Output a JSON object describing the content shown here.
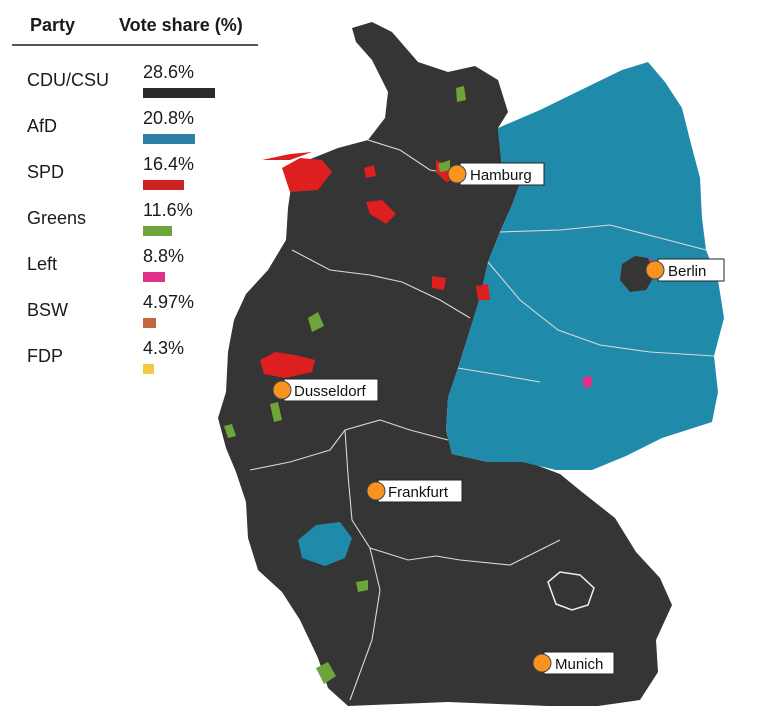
{
  "legend": {
    "header_party": "Party",
    "header_share": "Vote share (%)",
    "parties": [
      {
        "name": "CDU/CSU",
        "share_label": "28.6%",
        "share": 28.6,
        "color": "#2b2b2b"
      },
      {
        "name": "AfD",
        "share_label": "20.8%",
        "share": 20.8,
        "color": "#2e7fa6"
      },
      {
        "name": "SPD",
        "share_label": "16.4%",
        "share": 16.4,
        "color": "#cc2222"
      },
      {
        "name": "Greens",
        "share_label": "11.6%",
        "share": 11.6,
        "color": "#6ea53a"
      },
      {
        "name": "Left",
        "share_label": "8.8%",
        "share": 8.8,
        "color": "#e0308a"
      },
      {
        "name": "BSW",
        "share_label": "4.97%",
        "share": 4.97,
        "color": "#c4673d"
      },
      {
        "name": "FDP",
        "share_label": "4.3%",
        "share": 4.3,
        "color": "#f5c842"
      }
    ]
  },
  "map": {
    "colors": {
      "cdu_region": "#353535",
      "afd_region": "#1f8aaa",
      "spd_region": "#dd1f1f",
      "greens_region": "#6ea53a",
      "left_region": "#e0308a",
      "city_marker": "#f7931e"
    },
    "cities": [
      {
        "name": "Hamburg"
      },
      {
        "name": "Berlin"
      },
      {
        "name": "Dusseldorf"
      },
      {
        "name": "Frankfurt"
      },
      {
        "name": "Munich"
      }
    ]
  }
}
